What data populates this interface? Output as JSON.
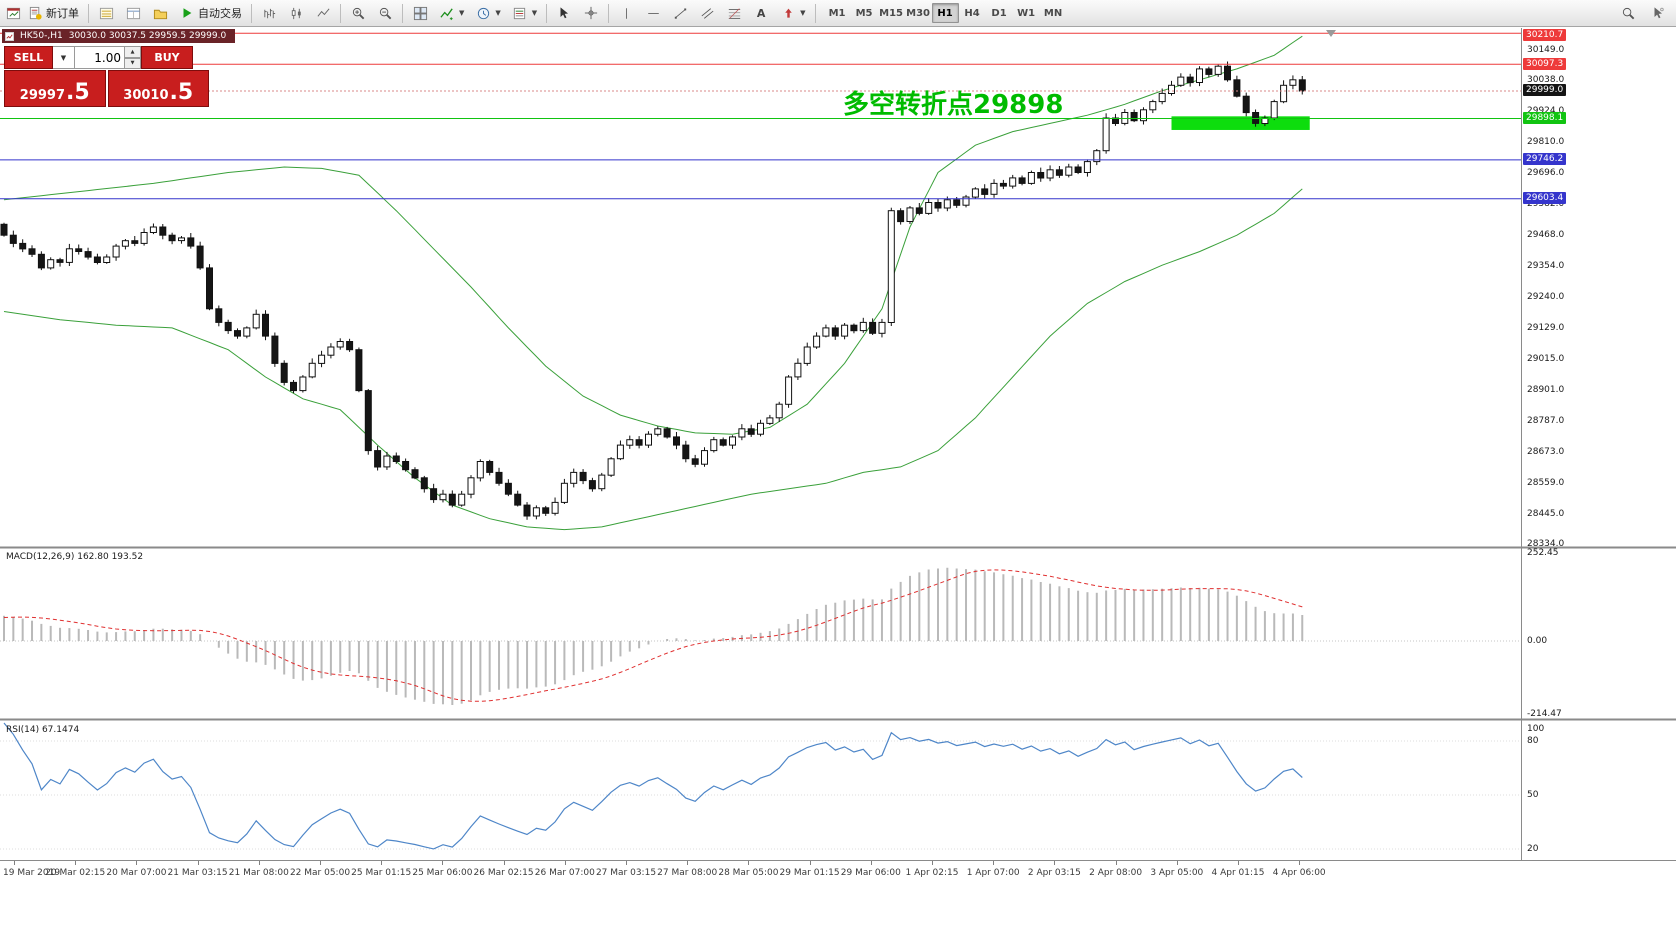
{
  "toolbar": {
    "new_order_label": "新订单",
    "auto_trading_label": "自动交易",
    "timeframes": [
      "M1",
      "M5",
      "M15",
      "M30",
      "H1",
      "H4",
      "D1",
      "W1",
      "MN"
    ],
    "active_timeframe": "H1"
  },
  "chart_header": {
    "symbol_title": "HK50-,H1",
    "ohlc": "30030.0 30037.5 29959.5 29999.0"
  },
  "trade_panel": {
    "sell_label": "SELL",
    "buy_label": "BUY",
    "volume": "1.00",
    "sell_price_main": "29997",
    "sell_price_frac": ".5",
    "buy_price_main": "30010",
    "buy_price_frac": ".5"
  },
  "annotation": {
    "text": "多空转折点29898"
  },
  "price_scale": {
    "labels": [
      "30149.0",
      "30038.0",
      "29924.0",
      "29810.0",
      "29696.0",
      "29582.0",
      "29468.0",
      "29354.0",
      "29240.0",
      "29129.0",
      "29015.0",
      "28901.0",
      "28787.0",
      "28673.0",
      "28559.0",
      "28445.0",
      "28334.0"
    ],
    "badges": [
      {
        "text": "30210.7",
        "price": 30210.7,
        "type": "red"
      },
      {
        "text": "30097.3",
        "price": 30097.3,
        "type": "red"
      },
      {
        "text": "29999.0",
        "price": 29999.0,
        "type": "current"
      },
      {
        "text": "29898.1",
        "price": 29898.1,
        "type": "green"
      },
      {
        "text": "29746.2",
        "price": 29746.2,
        "type": "blue"
      },
      {
        "text": "29603.4",
        "price": 29603.4,
        "type": "blue"
      }
    ]
  },
  "indicators": {
    "macd": {
      "label": "MACD(12,26,9) 162.80 193.52",
      "scale": [
        "252.45",
        "0.00",
        "-214.47"
      ]
    },
    "rsi": {
      "label": "RSI(14) 67.1474",
      "scale": [
        "100",
        "80",
        "50",
        "20"
      ]
    }
  },
  "time_axis": [
    "19 Mar 2019",
    "20 Mar 02:15",
    "20 Mar 07:00",
    "21 Mar 03:15",
    "21 Mar 08:00",
    "22 Mar 05:00",
    "25 Mar 01:15",
    "25 Mar 06:00",
    "26 Mar 02:15",
    "26 Mar 07:00",
    "27 Mar 03:15",
    "27 Mar 08:00",
    "28 Mar 05:00",
    "29 Mar 01:15",
    "29 Mar 06:00",
    "1 Apr 02:15",
    "1 Apr 07:00",
    "2 Apr 03:15",
    "2 Apr 08:00",
    "3 Apr 05:00",
    "4 Apr 01:15",
    "4 Apr 06:00"
  ],
  "chart_data": {
    "type": "candlestick",
    "symbol": "HK50-",
    "timeframe": "H1",
    "ohlc_current": {
      "open": 30030.0,
      "high": 30037.5,
      "low": 29959.5,
      "close": 29999.0
    },
    "price_axis_range": [
      28330,
      30230
    ],
    "closes": [
      29470,
      29440,
      29420,
      29400,
      29350,
      29380,
      29370,
      29420,
      29410,
      29390,
      29370,
      29390,
      29430,
      29450,
      29440,
      29480,
      29500,
      29470,
      29450,
      29460,
      29430,
      29350,
      29200,
      29150,
      29120,
      29100,
      29130,
      29180,
      29100,
      29000,
      28930,
      28900,
      28950,
      29000,
      29030,
      29060,
      29080,
      29050,
      28900,
      28680,
      28620,
      28660,
      28640,
      28610,
      28580,
      28540,
      28500,
      28520,
      28480,
      28520,
      28580,
      28640,
      28600,
      28560,
      28520,
      28480,
      28440,
      28470,
      28450,
      28490,
      28560,
      28600,
      28570,
      28540,
      28590,
      28650,
      28700,
      28720,
      28700,
      28740,
      28760,
      28730,
      28700,
      28650,
      28630,
      28680,
      28720,
      28700,
      28730,
      28760,
      28740,
      28780,
      28800,
      28850,
      28950,
      29000,
      29060,
      29100,
      29130,
      29100,
      29140,
      29120,
      29150,
      29110,
      29150,
      29560,
      29520,
      29570,
      29550,
      29590,
      29570,
      29600,
      29580,
      29610,
      29640,
      29620,
      29660,
      29650,
      29680,
      29660,
      29700,
      29680,
      29710,
      29690,
      29720,
      29700,
      29740,
      29780,
      29900,
      29880,
      29920,
      29890,
      29930,
      29960,
      29990,
      30020,
      30050,
      30030,
      30080,
      30060,
      30090,
      30040,
      29980,
      29920,
      29880,
      29900,
      29960,
      30020,
      30040,
      29999
    ],
    "horizontal_lines": [
      {
        "price": 30210.7,
        "color": "red"
      },
      {
        "price": 30097.3,
        "color": "red"
      },
      {
        "price": 29898.1,
        "color": "green"
      },
      {
        "price": 29746.2,
        "color": "blue"
      },
      {
        "price": 29603.4,
        "color": "blue"
      }
    ],
    "current_price": 29999.0,
    "green_zone": {
      "from_candle": 125,
      "to_candle": 139.8,
      "price_top": 29906,
      "price_bottom": 29856
    },
    "band_upper": [
      [
        0,
        29600
      ],
      [
        8,
        29630
      ],
      [
        16,
        29660
      ],
      [
        24,
        29700
      ],
      [
        30,
        29720
      ],
      [
        34,
        29715
      ],
      [
        38,
        29690
      ],
      [
        42,
        29560
      ],
      [
        46,
        29420
      ],
      [
        50,
        29280
      ],
      [
        54,
        29130
      ],
      [
        58,
        28990
      ],
      [
        62,
        28880
      ],
      [
        66,
        28810
      ],
      [
        70,
        28770
      ],
      [
        74,
        28745
      ],
      [
        78,
        28740
      ],
      [
        82,
        28765
      ],
      [
        86,
        28850
      ],
      [
        90,
        29000
      ],
      [
        94,
        29200
      ],
      [
        97,
        29500
      ],
      [
        100,
        29700
      ],
      [
        104,
        29800
      ],
      [
        108,
        29850
      ],
      [
        112,
        29880
      ],
      [
        116,
        29910
      ],
      [
        120,
        29950
      ],
      [
        124,
        30000
      ],
      [
        128,
        30040
      ],
      [
        132,
        30080
      ],
      [
        136,
        30130
      ],
      [
        139,
        30200
      ]
    ],
    "band_lower": [
      [
        0,
        29190
      ],
      [
        6,
        29160
      ],
      [
        12,
        29140
      ],
      [
        18,
        29130
      ],
      [
        24,
        29050
      ],
      [
        28,
        28950
      ],
      [
        32,
        28870
      ],
      [
        36,
        28830
      ],
      [
        40,
        28700
      ],
      [
        44,
        28580
      ],
      [
        48,
        28480
      ],
      [
        52,
        28430
      ],
      [
        56,
        28400
      ],
      [
        60,
        28390
      ],
      [
        64,
        28400
      ],
      [
        68,
        28430
      ],
      [
        72,
        28460
      ],
      [
        76,
        28490
      ],
      [
        80,
        28520
      ],
      [
        84,
        28540
      ],
      [
        88,
        28560
      ],
      [
        92,
        28600
      ],
      [
        96,
        28620
      ],
      [
        100,
        28680
      ],
      [
        104,
        28800
      ],
      [
        108,
        28950
      ],
      [
        112,
        29100
      ],
      [
        116,
        29220
      ],
      [
        120,
        29300
      ],
      [
        124,
        29360
      ],
      [
        128,
        29410
      ],
      [
        132,
        29470
      ],
      [
        136,
        29550
      ],
      [
        139,
        29640
      ]
    ]
  },
  "colors": {
    "up_candle": "#ffffff",
    "down_candle": "#151515",
    "bollinger": "#3aa03a",
    "macd_hist": "#b9b9b9",
    "macd_signal": "#e03030",
    "rsi_line": "#4e86c8",
    "hline_red": "#ee3a3a",
    "hline_green": "#11c411",
    "hline_blue": "#3535cc",
    "zone_green": "#0ddd0d",
    "panel_red": "#c81e1e",
    "annotation_green": "#00bb00",
    "title_bar": "#6a2328"
  }
}
